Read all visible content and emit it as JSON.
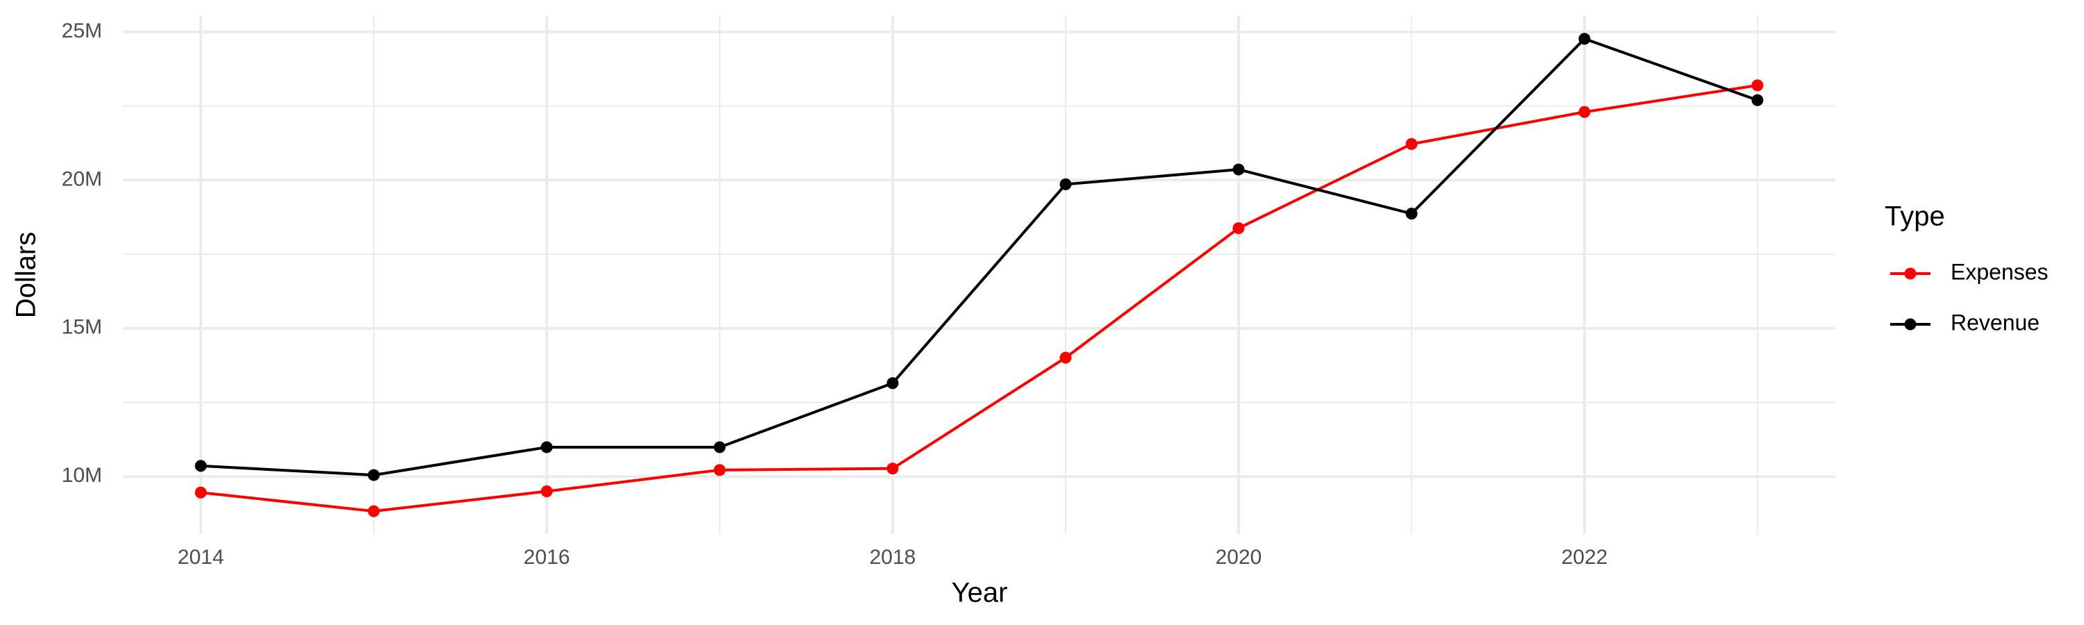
{
  "chart_data": {
    "type": "line",
    "x_label": "Year",
    "y_label": "Dollars",
    "x": [
      2014,
      2015,
      2016,
      2017,
      2018,
      2019,
      2020,
      2021,
      2022,
      2023
    ],
    "series": [
      {
        "name": "Expenses",
        "color": "#ff0000",
        "values": [
          9460000,
          8830000,
          9500000,
          10220000,
          10270000,
          14010000,
          18380000,
          21220000,
          22300000,
          23200000
        ]
      },
      {
        "name": "Revenue",
        "color": "#000000",
        "values": [
          10360000,
          10050000,
          10990000,
          10990000,
          13150000,
          19860000,
          20360000,
          18870000,
          24770000,
          22700000
        ]
      }
    ],
    "xlim": [
      2013.55,
      2023.45
    ],
    "ylim": [
      8060000,
      25540000
    ],
    "xticks": [
      2014,
      2016,
      2018,
      2020,
      2022
    ],
    "xminorticks": [
      2015,
      2017,
      2019,
      2021,
      2023
    ],
    "yticks": [
      {
        "value": 10000000,
        "label": "10M"
      },
      {
        "value": 15000000,
        "label": "15M"
      },
      {
        "value": 20000000,
        "label": "20M"
      },
      {
        "value": 25000000,
        "label": "25M"
      }
    ],
    "yminorticks": [
      12500000,
      17500000,
      22500000
    ],
    "grid": true,
    "legend_title": "Type",
    "legend_position": "right"
  }
}
